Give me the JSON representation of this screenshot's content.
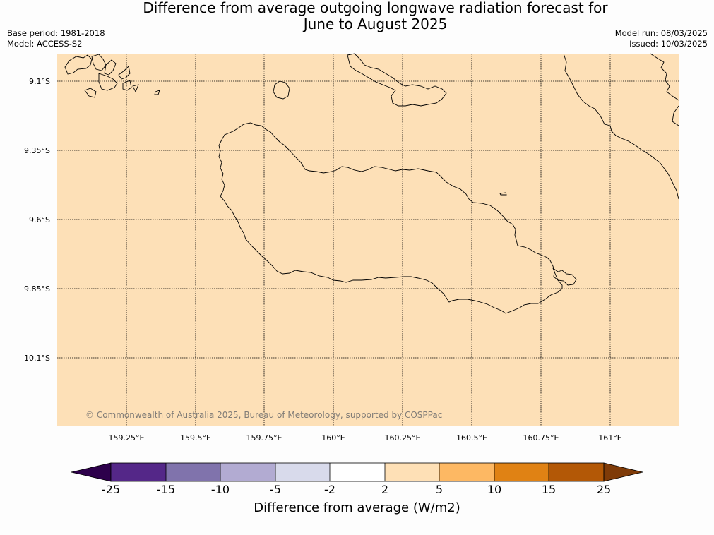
{
  "title_line1": "Difference from average outgoing longwave radiation forecast for",
  "title_line2": "June to August 2025",
  "base_period": "Base period: 1981-2018",
  "model": "Model: ACCESS-S2",
  "model_run": "Model run: 08/03/2025",
  "issued": "Issued: 10/03/2025",
  "copyright": "© Commonwealth of Australia 2025, Bureau of Meteorology, supported by COSPPac",
  "lat_labels": [
    "9.1°S",
    "9.35°S",
    "9.6°S",
    "9.85°S",
    "10.1°S"
  ],
  "lon_labels": [
    "159.25°E",
    "159.5°E",
    "159.75°E",
    "160°E",
    "160.25°E",
    "160.5°E",
    "160.75°E",
    "161°E"
  ],
  "map_fill_color": "#fde0b7",
  "colorbar": {
    "label": "Difference from average (W/m2)",
    "ticks": [
      "-25",
      "-15",
      "-10",
      "-5",
      "-2",
      "2",
      "5",
      "10",
      "15",
      "25"
    ],
    "low_extend_color": "#2d004b",
    "high_extend_color": "#7f3b08",
    "colors": [
      "#542788",
      "#8073ac",
      "#b2abd2",
      "#d8daeb",
      "#ffffff",
      "#fee0b6",
      "#fdb863",
      "#e08214",
      "#b35806"
    ]
  }
}
